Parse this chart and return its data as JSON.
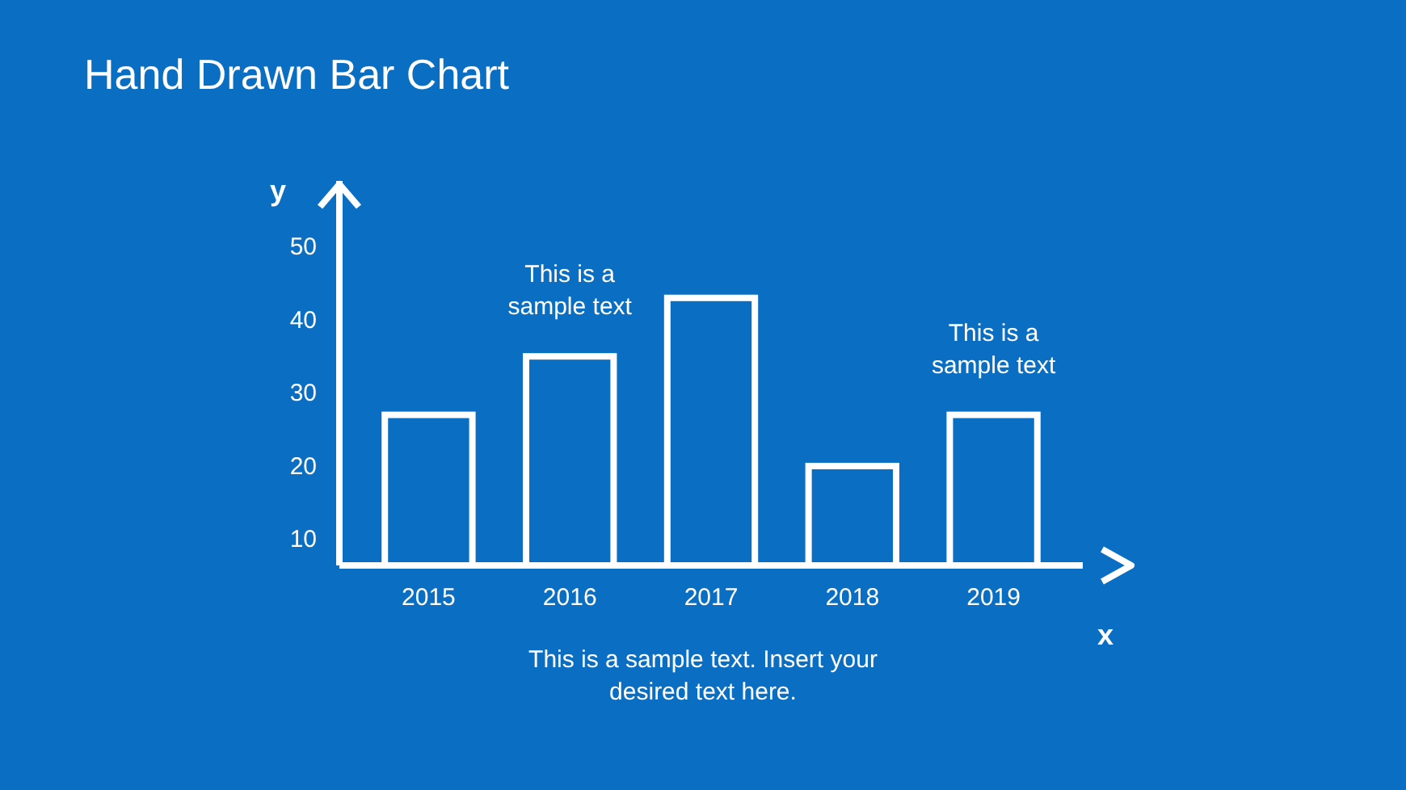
{
  "chart_data": {
    "type": "bar",
    "title": "Hand Drawn Bar Chart",
    "xlabel": "x",
    "ylabel": "y",
    "categories": [
      "2015",
      "2016",
      "2017",
      "2018",
      "2019"
    ],
    "values": [
      27,
      35,
      43,
      20,
      27
    ],
    "color": "#ffffff",
    "ylim": [
      6.4,
      59
    ],
    "yticks": [
      10,
      20,
      30,
      40,
      50
    ],
    "grid": false,
    "annotations": [
      {
        "text": "This is a sample text",
        "x": "2016",
        "y": 35
      },
      {
        "text": "This is a sample text",
        "x": "2019",
        "y": 27
      },
      "This is a sample text. Insert your desired text here."
    ]
  }
}
